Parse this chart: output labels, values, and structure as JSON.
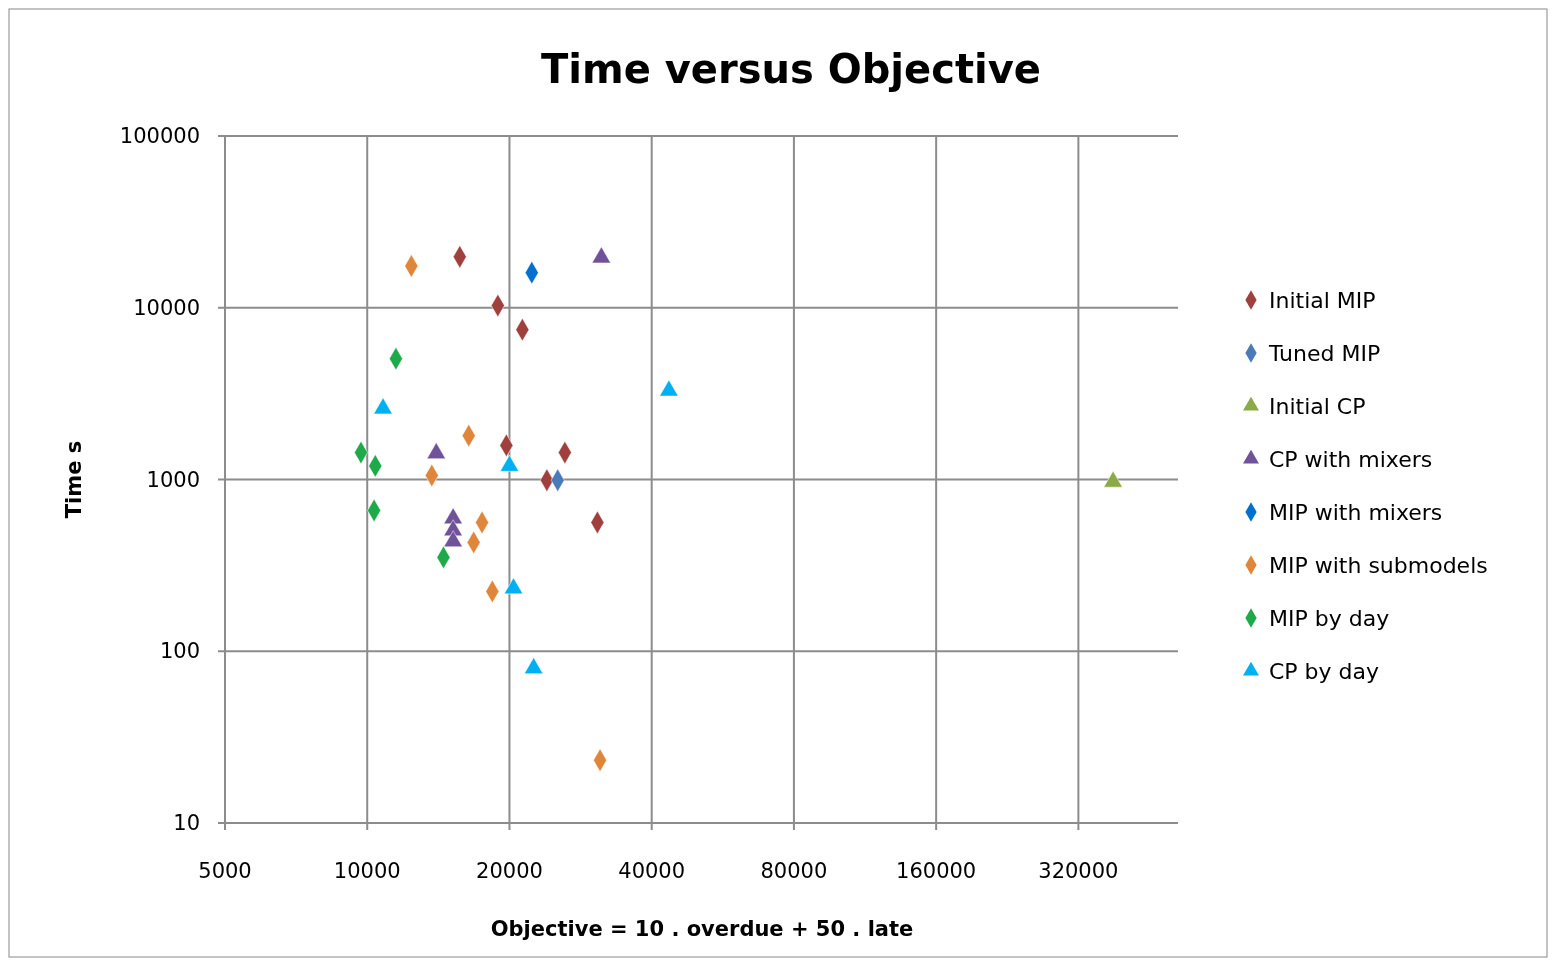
{
  "chart_data": {
    "type": "scatter",
    "title": "Time versus Objective",
    "xlabel": "Objective = 10 . overdue + 50 . late",
    "ylabel": "Time s",
    "log": "xy",
    "grid": true,
    "legend": "right",
    "xlim": [
      5000,
      520000
    ],
    "xticks": [
      5000,
      10000,
      20000,
      40000,
      80000,
      160000,
      320000
    ],
    "ylim": [
      10,
      100000
    ],
    "yticks": [
      10,
      100,
      1000,
      10000,
      100000
    ],
    "series": [
      {
        "name": "Initial MIP",
        "color": "#a0403d",
        "marker": "diamond",
        "x": [
          15700,
          18900,
          21300,
          19700,
          26200,
          24000,
          30700
        ],
        "values": [
          19800,
          10300,
          7450,
          1580,
          1435,
          990,
          562
        ]
      },
      {
        "name": "Tuned MIP",
        "color": "#4a7ab8",
        "marker": "diamond",
        "x": [
          25300
        ],
        "values": [
          990
        ]
      },
      {
        "name": "Initial CP",
        "color": "#8aaa48",
        "marker": "triangle",
        "x": [
          379000
        ],
        "values": [
          970
        ]
      },
      {
        "name": "CP with mixers",
        "color": "#6f529a",
        "marker": "triangle",
        "x": [
          31300,
          14000,
          15200,
          15200,
          15200
        ],
        "values": [
          19600,
          1420,
          593,
          505,
          436
        ]
      },
      {
        "name": "MIP with mixers",
        "color": "#0070d0",
        "marker": "diamond",
        "x": [
          22300
        ],
        "values": [
          16000
        ]
      },
      {
        "name": "MIP with submodels",
        "color": "#e0863a",
        "marker": "diamond",
        "x": [
          12400,
          16400,
          13700,
          17500,
          16800,
          18400,
          31100
        ],
        "values": [
          17500,
          1800,
          1055,
          562,
          430,
          223,
          23.2
        ]
      },
      {
        "name": "MIP by day",
        "color": "#1faa4a",
        "marker": "diamond",
        "x": [
          11500,
          9700,
          10400,
          10340,
          14500
        ],
        "values": [
          5050,
          1435,
          1200,
          660,
          352
        ]
      },
      {
        "name": "CP by day",
        "color": "#00b0f0",
        "marker": "triangle",
        "x": [
          10800,
          43500,
          20000,
          20400,
          22500
        ],
        "values": [
          2590,
          3290,
          1200,
          232,
          79.6
        ]
      }
    ]
  }
}
